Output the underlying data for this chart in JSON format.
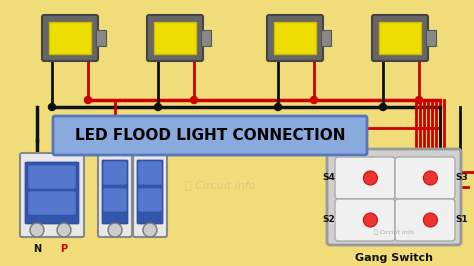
{
  "background_color": "#F0DC78",
  "title": "LED FLOOD LIGHT CONNECTION",
  "title_bg": "#8AAADD",
  "title_color": "#000000",
  "wire_black": "#111111",
  "wire_red": "#CC0000",
  "watermark": "Circuit info",
  "gang_label": "Gang Switch",
  "switch_labels": [
    "S4",
    "S3",
    "S2",
    "S1"
  ]
}
